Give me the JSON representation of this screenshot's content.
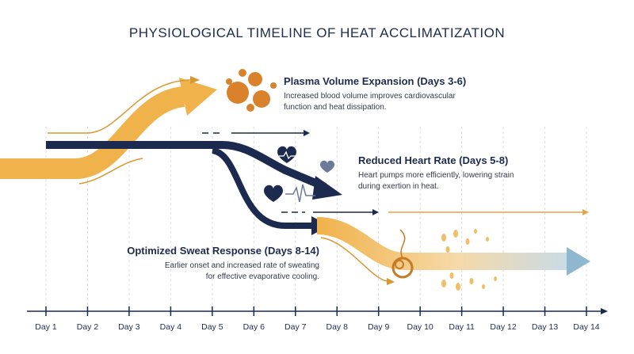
{
  "header": {
    "title": "PHYSIOLOGICAL TIMELINE OF HEAT ACCLIMATIZATION"
  },
  "callouts": [
    {
      "title": "Plasma Volume Expansion (Days 3-6)",
      "lines": [
        "Increased blood volume improves cardiovascular",
        "function and heat dissipation."
      ]
    },
    {
      "title": "Reduced Heart Rate (Days 5-8)",
      "lines": [
        "Heart pumps more efficiently, lowering strain",
        "during exertion in heat."
      ]
    },
    {
      "title": "Optimized Sweat Response (Days 8-14)",
      "lines": [
        "Earlier onset and increased rate of sweating",
        "for effective evaporative cooling."
      ]
    }
  ],
  "axis": {
    "labels": [
      "Day 1",
      "Day 2",
      "Day 3",
      "Day 4",
      "Day 5",
      "Day 6",
      "Day 7",
      "Day 8",
      "Day 9",
      "Day 10",
      "Day 11",
      "Day 12",
      "Day 13",
      "Day 14"
    ]
  }
}
